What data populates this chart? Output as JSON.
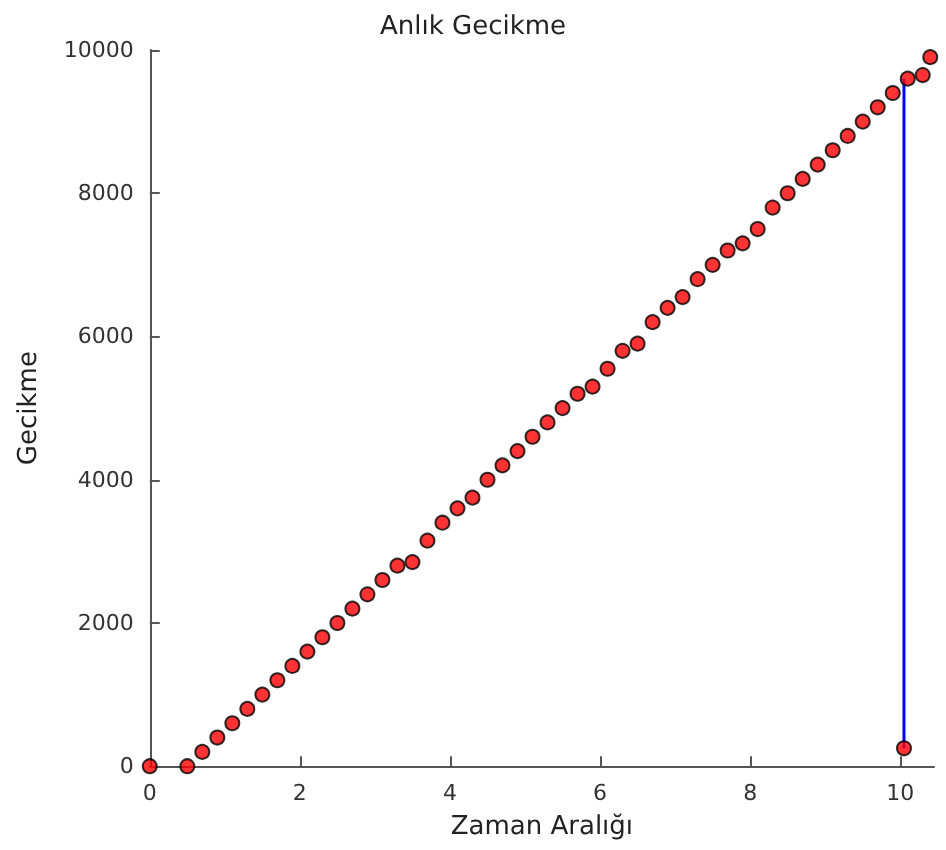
{
  "chart_data": {
    "type": "scatter",
    "title": "Anlık Gecikme",
    "xlabel": "Zaman Aralığı",
    "ylabel": "Gecikme",
    "xlim": [
      0,
      10.45
    ],
    "xticks": [
      0,
      2,
      4,
      6,
      8,
      10
    ],
    "ylim": [
      0,
      10000
    ],
    "yticks": [
      0,
      2000,
      4000,
      6000,
      8000,
      10000
    ],
    "grid": false,
    "marker": "circle",
    "series": [
      {
        "color": "#ff0000",
        "x": [
          0,
          0.5,
          0.7,
          0.9,
          1.1,
          1.3,
          1.5,
          1.7,
          1.9,
          2.1,
          2.3,
          2.5,
          2.7,
          2.9,
          3.1,
          3.3,
          3.5,
          3.7,
          3.9,
          4.1,
          4.3,
          4.5,
          4.7,
          4.9,
          5.1,
          5.3,
          5.5,
          5.7,
          5.9,
          6.1,
          6.3,
          6.5,
          6.7,
          6.9,
          7.1,
          7.3,
          7.5,
          7.7,
          7.9,
          8.1,
          8.3,
          8.5,
          8.7,
          8.9,
          9.1,
          9.3,
          9.5,
          9.7,
          9.9,
          10.05,
          10.1,
          10.3,
          10.4
        ],
        "values": [
          0,
          0,
          200,
          400,
          600,
          800,
          1000,
          1200,
          1400,
          1600,
          1800,
          2000,
          2200,
          2400,
          2600,
          2800,
          2850,
          3150,
          3400,
          3600,
          3750,
          4000,
          4200,
          4400,
          4600,
          4800,
          5000,
          5200,
          5300,
          5550,
          5800,
          5900,
          6200,
          6400,
          6550,
          6800,
          7000,
          7200,
          7300,
          7500,
          7800,
          8000,
          8200,
          8400,
          8600,
          8800,
          9000,
          9200,
          9400,
          250,
          9600,
          9650,
          9900
        ]
      },
      {
        "type": "line",
        "color": "#0000ff",
        "marker": "none",
        "x": [
          10.05,
          10.05
        ],
        "values": [
          250,
          9600
        ]
      }
    ]
  }
}
